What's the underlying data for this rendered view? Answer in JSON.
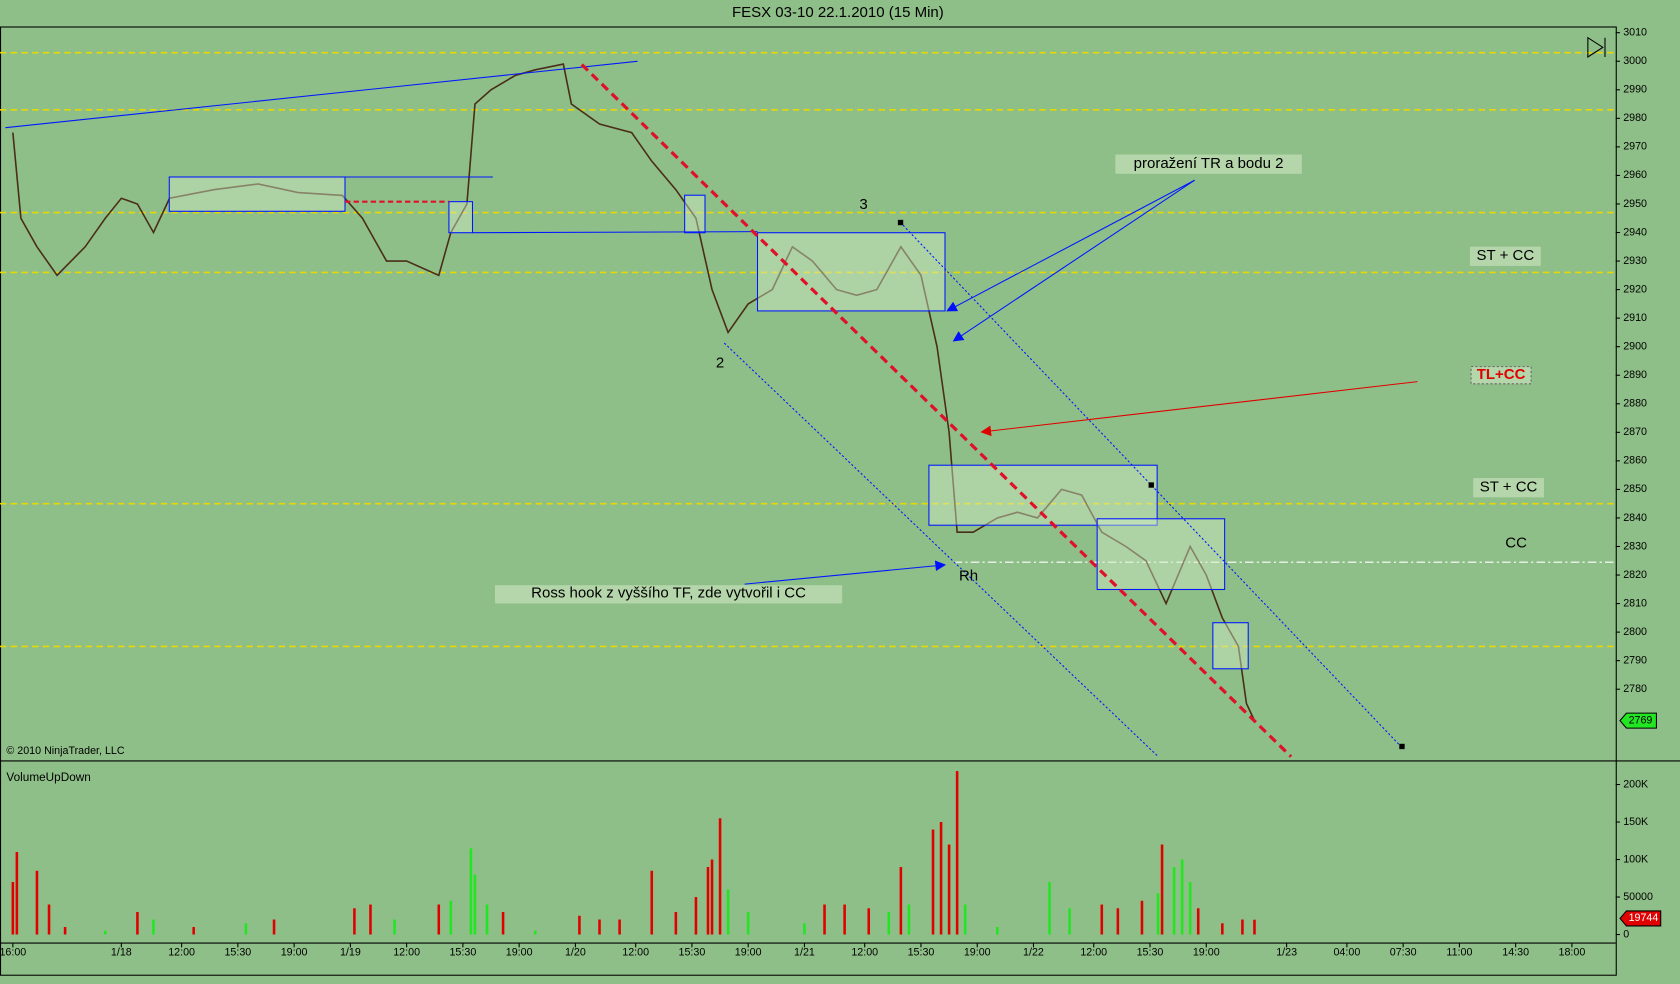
{
  "chart_data": {
    "type": "ohlc-line",
    "title": "FESX 03-10  22.1.2010 (15 Min)",
    "copyright": "© 2010 NinjaTrader, LLC",
    "indicator_title": "VolumeUpDown",
    "price": {
      "name": "FESX 03-10",
      "color": "#4a2e1a",
      "x": [
        0,
        2,
        6,
        11,
        18,
        23,
        27,
        31,
        35,
        39,
        50,
        61,
        71,
        82,
        87,
        93,
        98,
        106,
        109,
        113,
        115,
        119,
        125,
        130,
        137,
        139,
        146,
        154,
        159,
        165,
        170,
        174,
        178,
        183,
        189,
        194,
        199,
        205,
        210,
        215,
        221,
        226,
        230,
        233,
        235,
        239,
        245,
        250,
        255,
        261,
        266,
        271,
        277,
        282,
        287,
        293,
        297,
        301,
        305,
        307,
        309
      ],
      "values": [
        2975,
        2945,
        2935,
        2925,
        2935,
        2945,
        2952,
        2950,
        2940,
        2952,
        2955,
        2957,
        2954,
        2953,
        2945,
        2930,
        2930,
        2925,
        2940,
        2950,
        2985,
        2990,
        2995,
        2997,
        2999,
        2985,
        2978,
        2975,
        2965,
        2955,
        2945,
        2920,
        2905,
        2915,
        2920,
        2935,
        2930,
        2920,
        2918,
        2920,
        2935,
        2925,
        2900,
        2870,
        2835,
        2835,
        2840,
        2842,
        2840,
        2850,
        2848,
        2835,
        2830,
        2825,
        2810,
        2830,
        2820,
        2805,
        2795,
        2775,
        2769
      ]
    },
    "volume_series": [
      {
        "name": "up",
        "color": "#22e622",
        "x": [
          23,
          35,
          58,
          95,
          109,
          114,
          115,
          118,
          130,
          178,
          183,
          197,
          218,
          223,
          237,
          245,
          258,
          263,
          285,
          289,
          291,
          293
        ],
        "values": [
          5000,
          20000,
          15000,
          20000,
          45000,
          115000,
          80000,
          40000,
          5000,
          60000,
          30000,
          15000,
          30000,
          40000,
          40000,
          10000,
          70000,
          35000,
          55000,
          90000,
          100000,
          70000
        ]
      },
      {
        "name": "down",
        "color": "#e00000",
        "x": [
          0,
          1,
          6,
          9,
          13,
          31,
          45,
          65,
          85,
          89,
          106,
          122,
          141,
          146,
          151,
          159,
          165,
          170,
          173,
          174,
          176,
          202,
          207,
          213,
          221,
          229,
          231,
          233,
          235,
          271,
          275,
          281,
          286,
          295,
          301,
          306,
          309
        ],
        "values": [
          70000,
          110000,
          85000,
          40000,
          10000,
          30000,
          10000,
          20000,
          35000,
          40000,
          40000,
          30000,
          25000,
          20000,
          20000,
          85000,
          30000,
          50000,
          90000,
          100000,
          155000,
          40000,
          40000,
          35000,
          90000,
          140000,
          150000,
          120000,
          218000,
          40000,
          35000,
          45000,
          120000,
          35000,
          15000,
          20000,
          19744
        ]
      }
    ],
    "xlim": [
      -3.2,
      398.9
    ],
    "ylim": [
      2756,
      3012
    ],
    "vol_ylim": [
      -11400,
      228600
    ],
    "yticks": [
      2780,
      2790,
      2800,
      2810,
      2820,
      2830,
      2840,
      2850,
      2860,
      2870,
      2880,
      2890,
      2900,
      2910,
      2920,
      2930,
      2940,
      2950,
      2960,
      2970,
      2980,
      2990,
      3000,
      3010
    ],
    "vol_yticks": [
      0,
      50000,
      {
        "value": 100000,
        "label": "100K"
      },
      {
        "value": 150000,
        "label": "150K"
      },
      {
        "value": 200000,
        "label": "200K"
      }
    ],
    "xticks": [
      {
        "value": 0,
        "label": "16:00"
      },
      {
        "value": 27,
        "label": "1/18"
      },
      {
        "value": 42,
        "label": "12:00"
      },
      {
        "value": 56,
        "label": "15:30"
      },
      {
        "value": 70,
        "label": "19:00"
      },
      {
        "value": 84,
        "label": "1/19"
      },
      {
        "value": 98,
        "label": "12:00"
      },
      {
        "value": 112,
        "label": "15:30"
      },
      {
        "value": 126,
        "label": "19:00"
      },
      {
        "value": 140,
        "label": "1/20"
      },
      {
        "value": 155,
        "label": "12:00"
      },
      {
        "value": 169,
        "label": "15:30"
      },
      {
        "value": 183,
        "label": "19:00"
      },
      {
        "value": 197,
        "label": "1/21"
      },
      {
        "value": 212,
        "label": "12:00"
      },
      {
        "value": 226,
        "label": "15:30"
      },
      {
        "value": 240,
        "label": "19:00"
      },
      {
        "value": 254,
        "label": "1/22"
      },
      {
        "value": 269,
        "label": "12:00"
      },
      {
        "value": 283,
        "label": "15:30"
      },
      {
        "value": 297,
        "label": "19:00"
      },
      {
        "value": 317,
        "label": "1/23"
      },
      {
        "value": 332,
        "label": "04:00"
      },
      {
        "value": 346,
        "label": "07:30"
      },
      {
        "value": 360,
        "label": "11:00"
      },
      {
        "value": 374,
        "label": "14:30"
      },
      {
        "value": 388,
        "label": "18:00"
      }
    ],
    "levels": [
      3003,
      2983,
      2947,
      2926,
      2845,
      2795
    ],
    "level_color": "#e8d800",
    "cc_level": 2824.5,
    "last_price": 2769,
    "last_volume": 19744,
    "annotations": [
      "proražení TR a bodu 2",
      "ST + CC",
      "TL+CC",
      "ST + CC",
      "CC",
      "3",
      "2",
      "Rh",
      "Ross hook z vyššího TF, zde vytvořil i CC"
    ]
  }
}
